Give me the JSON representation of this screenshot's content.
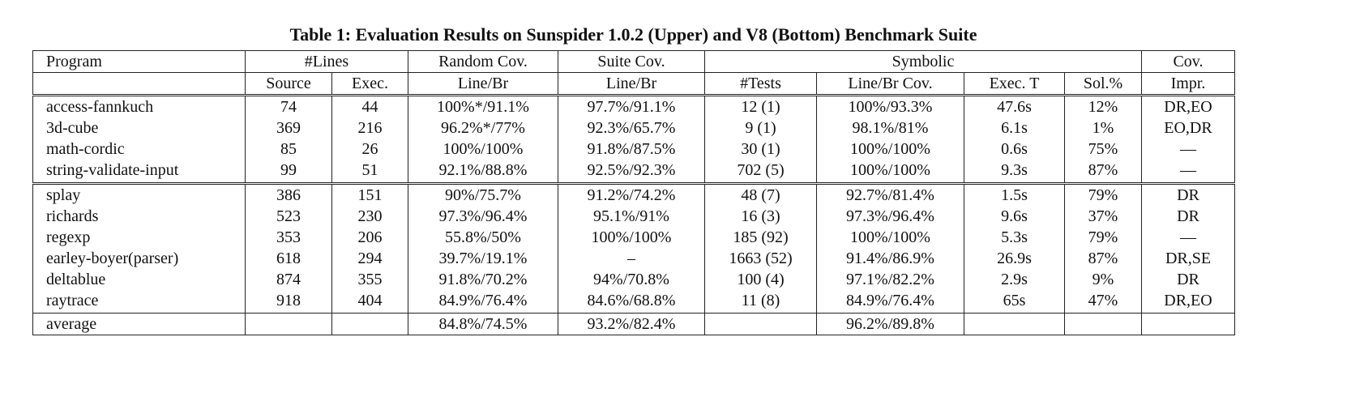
{
  "title": "Table 1: Evaluation Results on Sunspider 1.0.2 (Upper) and V8 (Bottom) Benchmark Suite",
  "header1": [
    "Program",
    "#Lines",
    "Random Cov.",
    "Suite Cov.",
    "Symbolic",
    "Cov."
  ],
  "header2": [
    "",
    "Source",
    "Exec.",
    "Line/Br",
    "Line/Br",
    "#Tests",
    "Line/Br Cov.",
    "Exec. T",
    "Sol.%",
    "Impr."
  ],
  "rows": [
    [
      "access-fannkuch",
      "74",
      "44",
      "100%*/91.1%",
      "97.7%/91.1%",
      "12 (1)",
      "100%/93.3%",
      "47.6s",
      "12%",
      "DR,EO"
    ],
    [
      "3d-cube",
      "369",
      "216",
      "96.2%*/77%",
      "92.3%/65.7%",
      "9 (1)",
      "98.1%/81%",
      "6.1s",
      "1%",
      "EO,DR"
    ],
    [
      "math-cordic",
      "85",
      "26",
      "100%/100%",
      "91.8%/87.5%",
      "30 (1)",
      "100%/100%",
      "0.6s",
      "75%",
      "—"
    ],
    [
      "string-validate-input",
      "99",
      "51",
      "92.1%/88.8%",
      "92.5%/92.3%",
      "702 (5)",
      "100%/100%",
      "9.3s",
      "87%",
      "—"
    ],
    [
      "splay",
      "386",
      "151",
      "90%/75.7%",
      "91.2%/74.2%",
      "48 (7)",
      "92.7%/81.4%",
      "1.5s",
      "79%",
      "DR"
    ],
    [
      "richards",
      "523",
      "230",
      "97.3%/96.4%",
      "95.1%/91%",
      "16 (3)",
      "97.3%/96.4%",
      "9.6s",
      "37%",
      "DR"
    ],
    [
      "regexp",
      "353",
      "206",
      "55.8%/50%",
      "100%/100%",
      "185 (92)",
      "100%/100%",
      "5.3s",
      "79%",
      "—"
    ],
    [
      "earley-boyer(parser)",
      "618",
      "294",
      "39.7%/19.1%",
      "–",
      "1663 (52)",
      "91.4%/86.9%",
      "26.9s",
      "87%",
      "DR,SE"
    ],
    [
      "deltablue",
      "874",
      "355",
      "91.8%/70.2%",
      "94%/70.8%",
      "100 (4)",
      "97.1%/82.2%",
      "2.9s",
      "9%",
      "DR"
    ],
    [
      "raytrace",
      "918",
      "404",
      "84.9%/76.4%",
      "84.6%/68.8%",
      "11 (8)",
      "84.9%/76.4%",
      "65s",
      "47%",
      "DR,EO"
    ]
  ],
  "average": [
    "average",
    "",
    "",
    "84.8%/74.5%",
    "93.2%/82.4%",
    "",
    "96.2%/89.8%",
    "",
    "",
    ""
  ]
}
